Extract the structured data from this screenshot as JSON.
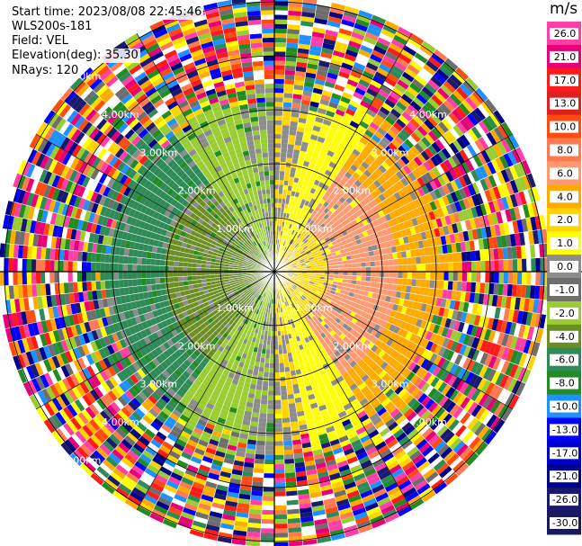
{
  "header": {
    "start_time": "Start time: 2023/08/08 22:45:46",
    "instrument": "WLS200s-181",
    "field": "Field: VEL",
    "elevation": "Elevation(deg): 35.30",
    "nrays": "NRays: 120"
  },
  "colorbar": {
    "unit": "m/s",
    "ticks": [
      "26.0",
      "21.0",
      "17.0",
      "13.0",
      "10.0",
      "8.0",
      "6.0",
      "4.0",
      "2.0",
      "1.0",
      "0.0",
      "-1.0",
      "-2.0",
      "-4.0",
      "-6.0",
      "-8.0",
      "-10.0",
      "-13.0",
      "-17.0",
      "-21.0",
      "-26.0",
      "-30.0"
    ],
    "colors": [
      "#ff3fa8",
      "#e8007a",
      "#ff1a1a",
      "#e02020",
      "#ff4a10",
      "#ff7a50",
      "#ff9a70",
      "#ffaa00",
      "#ffd400",
      "#ffff00",
      "#8c8c8c",
      "#6e6e6e",
      "#9acd32",
      "#6b8e23",
      "#2e8b57",
      "#228b22",
      "#1e90ff",
      "#0000ff",
      "#0000cd",
      "#00008b",
      "#191970",
      "#191960"
    ]
  },
  "chart_data": {
    "type": "heatmap",
    "projection": "polar (PPI)",
    "range_rings": [
      "1.00km",
      "2.00km",
      "3.00km",
      "4.00km",
      "5.00km"
    ],
    "ring_labels": {
      "nw": [
        "1.00km",
        "2.00km",
        "3.00km",
        "4.00km",
        "5.00km"
      ],
      "ne": [
        "1.00km",
        "2.00km",
        "3.00km",
        "4.00km"
      ],
      "se": [
        "1.00km",
        "2.00km",
        "3.00km",
        "4.00km"
      ],
      "sw": [
        "1.00km",
        "2.00km",
        "3.00km",
        "4.00km",
        "5.00km"
      ]
    },
    "rays": 120,
    "field": "VEL",
    "units": "m/s",
    "value_range": [
      -30,
      26
    ],
    "grid": true
  }
}
